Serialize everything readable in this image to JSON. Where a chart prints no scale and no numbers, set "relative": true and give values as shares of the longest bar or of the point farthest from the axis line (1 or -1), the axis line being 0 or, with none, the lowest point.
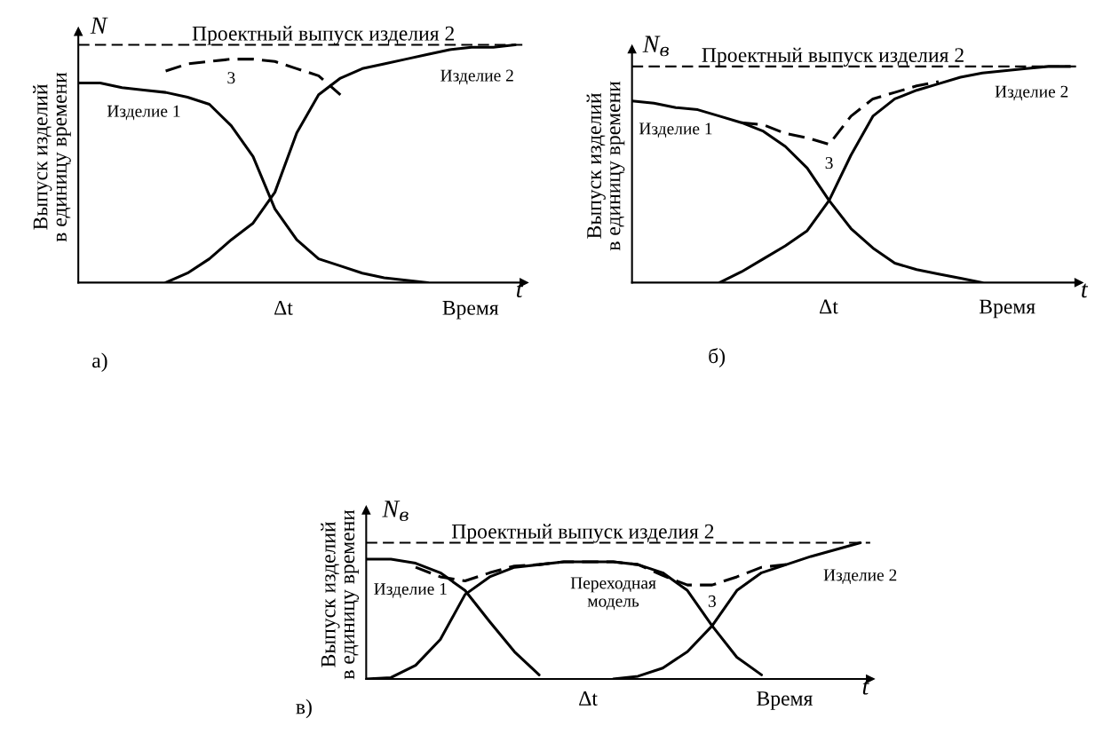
{
  "chart_data": [
    {
      "type": "line",
      "relative": true,
      "ylabel": "Выпуск изделий\nв единицу времени",
      "xlabel": "Время",
      "annotations": [
        "N",
        "Δt",
        "t",
        "а)"
      ],
      "categories": [
        null,
        null,
        null,
        null,
        null,
        null,
        null,
        null,
        null,
        null,
        null,
        null,
        null,
        null,
        null,
        null,
        null,
        null,
        null,
        null,
        null
      ],
      "ref_lines": [
        {
          "axis": "y",
          "value": 1,
          "label": "Проектный выпуск изделия 2",
          "line_style": "dashed",
          "color": "#000000"
        }
      ],
      "series": [
        {
          "name": "Изделие 1",
          "color": "#000000",
          "line_style": "solid",
          "values": [
            0.84,
            0.84,
            0.82,
            0.81,
            0.8,
            0.78,
            0.75,
            0.66,
            0.53,
            0.31,
            0.18,
            0.1,
            0.07,
            0.04,
            0.02,
            0.01,
            0,
            null,
            null,
            null,
            null
          ]
        },
        {
          "name": "Изделие 2",
          "color": "#000000",
          "line_style": "solid",
          "values": [
            null,
            null,
            null,
            null,
            0,
            0.04,
            0.1,
            0.18,
            0.25,
            0.38,
            0.63,
            0.79,
            0.86,
            0.9,
            0.92,
            0.94,
            0.96,
            0.98,
            0.99,
            0.99,
            1.0
          ]
        },
        {
          "name": "3",
          "color": "#000000",
          "line_style": "dashed",
          "values": [
            null,
            null,
            null,
            null,
            0.89,
            0.92,
            0.93,
            0.94,
            0.94,
            0.93,
            0.9,
            0.87,
            0.79,
            null,
            null,
            null,
            null,
            null,
            null,
            null,
            null
          ]
        }
      ]
    },
    {
      "type": "line",
      "relative": true,
      "ylabel": "Выпуск изделий\nв единицу времени",
      "xlabel": "Время",
      "annotations": [
        "N$_{в}$",
        "Δt",
        "t",
        "б)"
      ],
      "categories": [
        null,
        null,
        null,
        null,
        null,
        null,
        null,
        null,
        null,
        null,
        null,
        null,
        null,
        null,
        null,
        null,
        null,
        null,
        null,
        null,
        null
      ],
      "ref_lines": [
        {
          "axis": "y",
          "value": 1,
          "label": "Проектный выпуск изделия 2",
          "line_style": "dashed",
          "color": "#000000"
        }
      ],
      "series": [
        {
          "name": "Изделие 1",
          "color": "#000000",
          "line_style": "solid",
          "values": [
            0.84,
            0.83,
            0.81,
            0.8,
            0.77,
            0.74,
            0.7,
            0.63,
            0.53,
            0.38,
            0.25,
            0.16,
            0.09,
            0.06,
            0.04,
            0.02,
            0,
            null,
            null,
            null,
            null
          ]
        },
        {
          "name": "Изделие 2",
          "color": "#000000",
          "line_style": "solid",
          "values": [
            null,
            null,
            null,
            null,
            0,
            0.05,
            0.11,
            0.17,
            0.24,
            0.38,
            0.59,
            0.77,
            0.85,
            0.89,
            0.92,
            0.95,
            0.97,
            0.98,
            0.99,
            1.0,
            1.0
          ]
        },
        {
          "name": "3",
          "color": "#000000",
          "line_style": "dashed",
          "values": [
            null,
            null,
            null,
            null,
            null,
            0.74,
            0.73,
            0.69,
            0.67,
            0.64,
            0.77,
            0.85,
            0.88,
            0.91,
            0.93,
            null,
            null,
            null,
            null,
            null,
            null
          ]
        }
      ]
    },
    {
      "type": "line",
      "relative": true,
      "ylabel": "Выпуск изделий\nв единицу времени",
      "xlabel": "Время",
      "annotations": [
        "N$_{в}$",
        "Δt",
        "t",
        "в)"
      ],
      "categories": [
        null,
        null,
        null,
        null,
        null,
        null,
        null,
        null,
        null,
        null,
        null,
        null,
        null,
        null,
        null,
        null,
        null,
        null,
        null,
        null,
        null
      ],
      "ref_lines": [
        {
          "axis": "y",
          "value": 1,
          "label": "Проектный выпуск изделия 2",
          "line_style": "dashed",
          "color": "#000000"
        }
      ],
      "series": [
        {
          "name": "Изделие 1",
          "color": "#000000",
          "line_style": "solid",
          "values": [
            0.88,
            0.88,
            0.85,
            0.78,
            0.65,
            0.42,
            0.2,
            0.03,
            null,
            null,
            null,
            null,
            null,
            null,
            null,
            null,
            null,
            null,
            null,
            null,
            null
          ]
        },
        {
          "name": "Переходная\nмодель",
          "color": "#000000",
          "line_style": "solid",
          "values": [
            0,
            0.01,
            0.1,
            0.29,
            0.62,
            0.75,
            0.82,
            0.84,
            0.86,
            0.86,
            0.86,
            0.84,
            0.78,
            0.65,
            0.39,
            0.16,
            0.03,
            null,
            null,
            null,
            null
          ]
        },
        {
          "name": "Изделие 2",
          "color": "#000000",
          "line_style": "solid",
          "values": [
            null,
            null,
            null,
            null,
            null,
            null,
            null,
            null,
            null,
            null,
            0,
            0.02,
            0.08,
            0.2,
            0.39,
            0.65,
            0.78,
            0.84,
            0.9,
            0.95,
            1.0
          ]
        },
        {
          "name": "3",
          "color": "#000000",
          "line_style": "dashed",
          "values": [
            null,
            null,
            0.82,
            0.75,
            0.72,
            0.78,
            0.83,
            0.84,
            0.86,
            0.86,
            0.86,
            0.84,
            0.76,
            0.69,
            0.69,
            0.75,
            0.82,
            0.84,
            null,
            null,
            null
          ]
        }
      ]
    }
  ]
}
